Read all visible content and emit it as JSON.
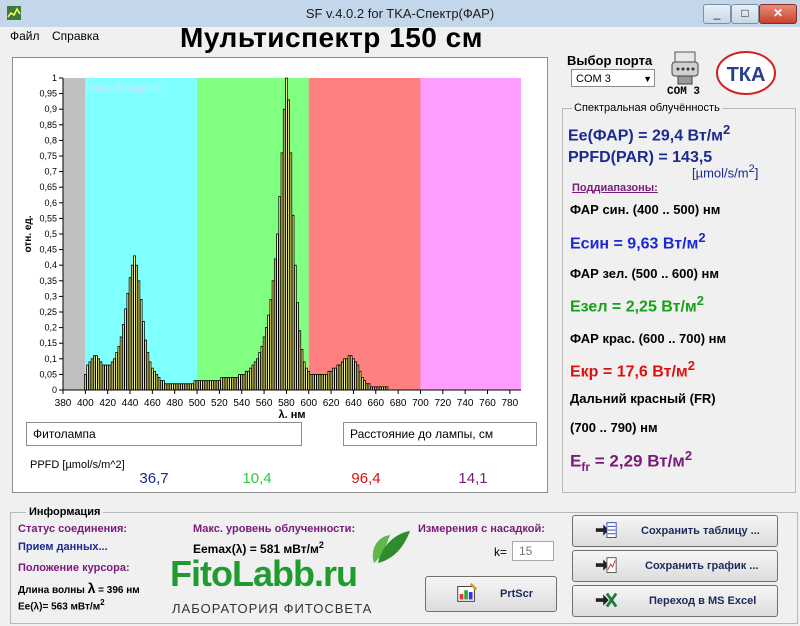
{
  "window": {
    "title": "SF v.4.0.2 for TKA-Спектр(ФАР)",
    "minimize": "_",
    "maximize": "□",
    "close": "✕"
  },
  "menu": {
    "file": "Файл",
    "help": "Справка"
  },
  "main_title": "Мультиспектр 150 см",
  "port": {
    "label": "Выбор порта",
    "selected": "COM 3",
    "indicator": "COM 3"
  },
  "logo_text": "ТКА",
  "chart_data": {
    "type": "bar",
    "watermark": "www.tkaspb.ru",
    "ylabel": "отн. ед.",
    "xlabel": "λ, нм",
    "xlim": [
      380,
      790
    ],
    "ylim": [
      0,
      1
    ],
    "xticks": [
      380,
      400,
      420,
      440,
      460,
      480,
      500,
      520,
      540,
      560,
      580,
      600,
      620,
      640,
      660,
      680,
      700,
      720,
      740,
      760,
      780
    ],
    "yticks": [
      "0",
      "0,05",
      "0,1",
      "0,15",
      "0,2",
      "0,25",
      "0,3",
      "0,35",
      "0,4",
      "0,45",
      "0,5",
      "0,55",
      "0,6",
      "0,65",
      "0,7",
      "0,75",
      "0,8",
      "0,85",
      "0,9",
      "0,95",
      "1"
    ],
    "bands": [
      {
        "from": 380,
        "to": 400,
        "color": "#c0c0c0"
      },
      {
        "from": 400,
        "to": 500,
        "color": "#80ffff"
      },
      {
        "from": 500,
        "to": 600,
        "color": "#80ff80"
      },
      {
        "from": 600,
        "to": 700,
        "color": "#ff8080"
      },
      {
        "from": 700,
        "to": 790,
        "color": "#ff9cff"
      }
    ],
    "bar_color": "#ffff80",
    "x_start": 400,
    "x_step": 2,
    "values": [
      0.05,
      0.08,
      0.09,
      0.1,
      0.11,
      0.11,
      0.1,
      0.09,
      0.08,
      0.08,
      0.08,
      0.08,
      0.09,
      0.1,
      0.12,
      0.14,
      0.17,
      0.21,
      0.26,
      0.31,
      0.36,
      0.4,
      0.43,
      0.4,
      0.35,
      0.29,
      0.22,
      0.16,
      0.12,
      0.09,
      0.07,
      0.06,
      0.05,
      0.04,
      0.03,
      0.03,
      0.02,
      0.02,
      0.02,
      0.02,
      0.02,
      0.02,
      0.02,
      0.02,
      0.02,
      0.02,
      0.02,
      0.02,
      0.02,
      0.03,
      0.03,
      0.03,
      0.03,
      0.03,
      0.03,
      0.03,
      0.03,
      0.03,
      0.03,
      0.03,
      0.03,
      0.04,
      0.04,
      0.04,
      0.04,
      0.04,
      0.04,
      0.04,
      0.04,
      0.05,
      0.05,
      0.05,
      0.06,
      0.06,
      0.07,
      0.08,
      0.09,
      0.1,
      0.12,
      0.14,
      0.17,
      0.2,
      0.24,
      0.29,
      0.35,
      0.42,
      0.5,
      0.62,
      0.76,
      0.9,
      1.0,
      0.93,
      0.76,
      0.56,
      0.4,
      0.28,
      0.19,
      0.13,
      0.09,
      0.07,
      0.06,
      0.05,
      0.05,
      0.05,
      0.05,
      0.05,
      0.05,
      0.05,
      0.05,
      0.06,
      0.06,
      0.07,
      0.07,
      0.08,
      0.08,
      0.09,
      0.1,
      0.1,
      0.11,
      0.11,
      0.1,
      0.09,
      0.08,
      0.06,
      0.04,
      0.03,
      0.02,
      0.02,
      0.01,
      0.01,
      0.01,
      0.01,
      0.01,
      0.01,
      0.01,
      0.01
    ]
  },
  "lamp_field": "Фитолампа",
  "distance_field": "Расстояние до лампы,  см",
  "ppfd": {
    "label": "PPFD [µmol/s/m^2]",
    "values": [
      "36,7",
      "10,4",
      "96,4",
      "14,1"
    ],
    "colors": [
      "#1b2a8e",
      "#2ecc40",
      "#d01010",
      "#7a1a7a"
    ]
  },
  "right_panel": {
    "title": "Спектральная облучённость",
    "ee_far": "Ee(ФАР) = 29,4 Вт/м",
    "ppfd_par": "PPFD(PAR) = 143,5",
    "ppfd_unit": "[µmol/s/m",
    "ppfd_unit_close": "]",
    "sub_title": "Поддиапазоны:",
    "blue_range": "ФАР син. (400 .. 500) нм",
    "e_blue": "Есин = 9,63 Вт/м",
    "green_range": "ФАР зел. (500 .. 600) нм",
    "e_green": "Езел = 2,25 Вт/м",
    "red_range": "ФАР крас. (600 .. 700) нм",
    "e_red": "Екр = 17,6 Вт/м",
    "fr_range1": "Дальний красный (FR)",
    "fr_range2": "(700 .. 790) нм",
    "e_fr": "E",
    "e_fr_sub": "fr",
    "e_fr_val": " = 2,29 Вт/м",
    "sq": "2",
    "colors": {
      "main": "#1b2a8e",
      "blue": "#1b2ad0",
      "green": "#18a018",
      "red": "#e01010",
      "fr": "#7a1a7a",
      "sub": "#7a1a7a"
    }
  },
  "info": {
    "title": "Информация",
    "status_label": "Статус соединения:",
    "status_value": "Прием данных...",
    "cursor_label": "Положение курсора:",
    "wavelength": "Длина волны",
    "lambda": "λ",
    "wavelength_val": " = 396 нм",
    "ee_cursor": "Ee(λ)= 563 мВт/м",
    "max_label": "Макс. уровень облученности:",
    "eemax": "Eemax(λ) = 581 мВт/м",
    "sq": "2"
  },
  "attachment": {
    "label": "Измерения с насадкой:",
    "k_label": "k=",
    "k_value": "15"
  },
  "brand": {
    "name": "FitoLabb.ru",
    "subtitle": "ЛАБОРАТОРИЯ ФИТОСВЕТА"
  },
  "buttons": {
    "printscr": "PrtScr",
    "save_table": "Сохранить таблицу ...",
    "save_chart": "Сохранить график ...",
    "excel": "Переход в MS Excel"
  }
}
